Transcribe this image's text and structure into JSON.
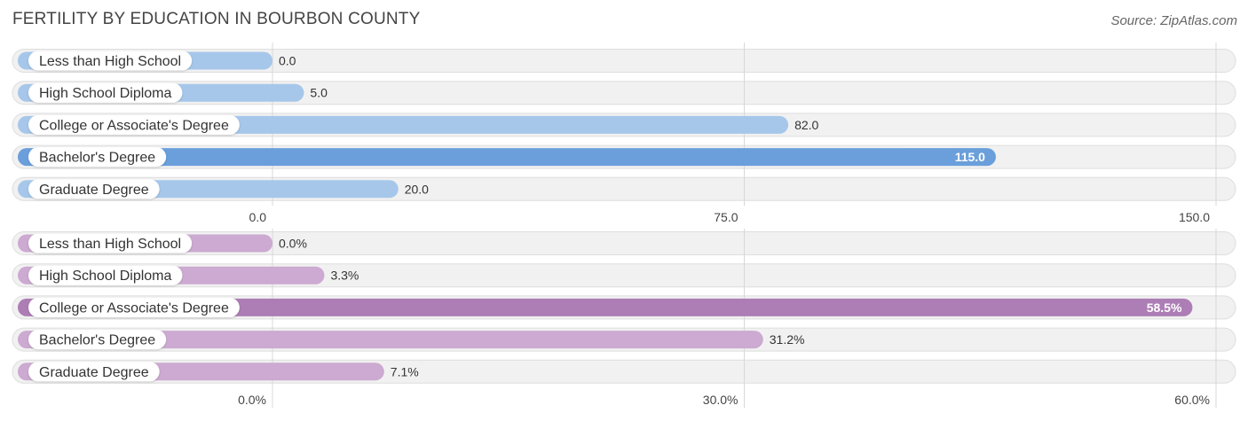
{
  "title": "FERTILITY BY EDUCATION IN BOURBON COUNTY",
  "source": "Source: ZipAtlas.com",
  "chart_data": [
    {
      "type": "bar",
      "orientation": "horizontal",
      "categories": [
        "Less than High School",
        "High School Diploma",
        "College or Associate's Degree",
        "Bachelor's Degree",
        "Graduate Degree"
      ],
      "values": [
        0.0,
        5.0,
        82.0,
        115.0,
        20.0
      ],
      "value_labels": [
        "0.0",
        "5.0",
        "82.0",
        "115.0",
        "20.0"
      ],
      "xlim": [
        0,
        150
      ],
      "ticks": [
        0,
        75,
        150
      ],
      "tick_labels": [
        "0.0",
        "75.0",
        "150.0"
      ],
      "bar_color": "#a6c7ea",
      "highlight_color": "#6a9fdb",
      "highlight_index": 3
    },
    {
      "type": "bar",
      "orientation": "horizontal",
      "categories": [
        "Less than High School",
        "High School Diploma",
        "College or Associate's Degree",
        "Bachelor's Degree",
        "Graduate Degree"
      ],
      "values": [
        0.0,
        3.3,
        58.5,
        31.2,
        7.1
      ],
      "value_labels": [
        "0.0%",
        "3.3%",
        "58.5%",
        "31.2%",
        "7.1%"
      ],
      "xlim": [
        0,
        60
      ],
      "ticks": [
        0,
        30,
        60
      ],
      "tick_labels": [
        "0.0%",
        "30.0%",
        "60.0%"
      ],
      "bar_color": "#ccaad1",
      "highlight_color": "#ad7db5",
      "highlight_index": 2
    }
  ]
}
